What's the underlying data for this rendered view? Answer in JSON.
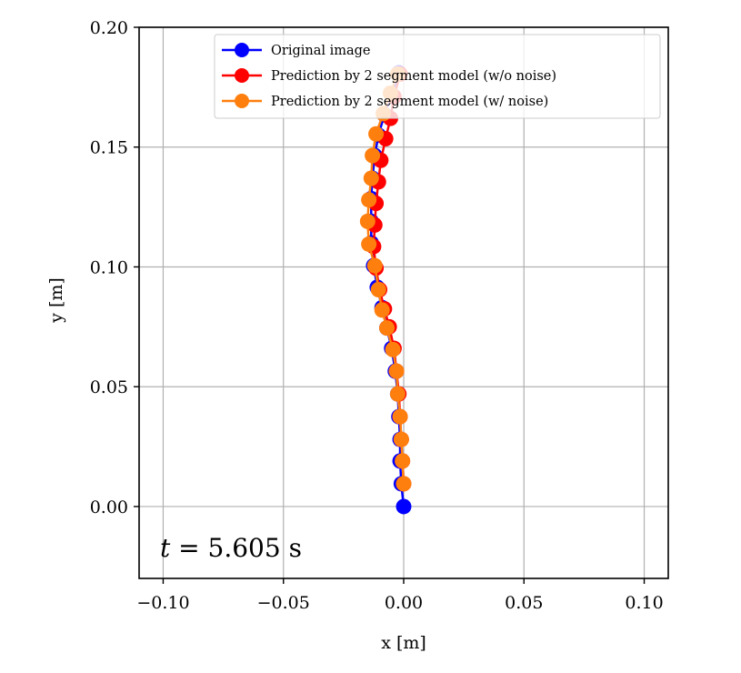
{
  "chart_data": {
    "type": "line",
    "title": "",
    "xlabel": "x [m]",
    "ylabel": "y [m]",
    "xlim": [
      -0.11,
      0.11
    ],
    "ylim": [
      -0.03,
      0.2
    ],
    "xticks": [
      -0.1,
      -0.05,
      0.0,
      0.05,
      0.1
    ],
    "xtick_labels": [
      "−0.10",
      "−0.05",
      "0.00",
      "0.05",
      "0.10"
    ],
    "yticks": [
      0.0,
      0.05,
      0.1,
      0.15,
      0.2
    ],
    "ytick_labels": [
      "0.00",
      "0.05",
      "0.10",
      "0.15",
      "0.20"
    ],
    "grid": true,
    "legend_position": "top-right",
    "annotation": {
      "symbol": "t",
      "text": " = 5.605 s"
    },
    "series": [
      {
        "name": "Original image",
        "color": "#0000ff",
        "points": [
          [
            0.0,
            0.0
          ],
          [
            -0.001,
            0.0095
          ],
          [
            -0.0015,
            0.019
          ],
          [
            -0.0015,
            0.028
          ],
          [
            -0.002,
            0.0375
          ],
          [
            -0.0025,
            0.047
          ],
          [
            -0.0035,
            0.0565
          ],
          [
            -0.005,
            0.066
          ],
          [
            -0.007,
            0.0745
          ],
          [
            -0.009,
            0.083
          ],
          [
            -0.011,
            0.0915
          ],
          [
            -0.0125,
            0.1005
          ],
          [
            -0.0135,
            0.11
          ],
          [
            -0.0135,
            0.119
          ],
          [
            -0.0135,
            0.1285
          ],
          [
            -0.013,
            0.137
          ],
          [
            -0.012,
            0.1465
          ],
          [
            -0.0105,
            0.155
          ],
          [
            -0.008,
            0.1635
          ],
          [
            -0.005,
            0.172
          ],
          [
            -0.002,
            0.181
          ]
        ]
      },
      {
        "name": "Prediction by 2 segment model (w/o noise)",
        "color": "#ff0000",
        "points": [
          [
            0.0,
            0.0095
          ],
          [
            -0.0005,
            0.019
          ],
          [
            -0.001,
            0.028
          ],
          [
            -0.0015,
            0.0375
          ],
          [
            -0.002,
            0.047
          ],
          [
            -0.003,
            0.0565
          ],
          [
            -0.004,
            0.066
          ],
          [
            -0.006,
            0.075
          ],
          [
            -0.008,
            0.0825
          ],
          [
            -0.01,
            0.0905
          ],
          [
            -0.0115,
            0.0995
          ],
          [
            -0.0125,
            0.1085
          ],
          [
            -0.012,
            0.1175
          ],
          [
            -0.0115,
            0.1265
          ],
          [
            -0.0105,
            0.1355
          ],
          [
            -0.0095,
            0.1445
          ],
          [
            -0.0075,
            0.1535
          ],
          [
            -0.0055,
            0.162
          ],
          [
            -0.004,
            0.171
          ],
          [
            -0.0015,
            0.1805
          ]
        ]
      },
      {
        "name": "Prediction by 2 segment model (w/ noise)",
        "color": "#ff7f0e",
        "points": [
          [
            0.0,
            0.0095
          ],
          [
            -0.0005,
            0.019
          ],
          [
            -0.001,
            0.028
          ],
          [
            -0.0015,
            0.0375
          ],
          [
            -0.0025,
            0.047
          ],
          [
            -0.003,
            0.0565
          ],
          [
            -0.0045,
            0.0655
          ],
          [
            -0.007,
            0.0745
          ],
          [
            -0.009,
            0.082
          ],
          [
            -0.0105,
            0.0905
          ],
          [
            -0.012,
            0.1005
          ],
          [
            -0.0145,
            0.1095
          ],
          [
            -0.015,
            0.119
          ],
          [
            -0.0145,
            0.128
          ],
          [
            -0.0135,
            0.137
          ],
          [
            -0.013,
            0.1465
          ],
          [
            -0.0115,
            0.1555
          ],
          [
            -0.0085,
            0.164
          ],
          [
            -0.0055,
            0.1725
          ],
          [
            -0.0025,
            0.1805
          ]
        ]
      }
    ]
  }
}
